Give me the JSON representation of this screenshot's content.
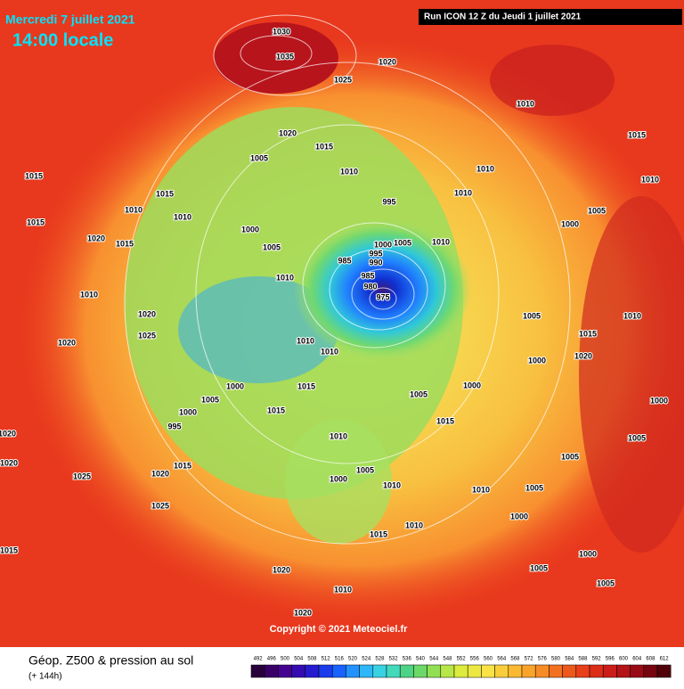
{
  "header": {
    "date": "Mercredi 7 juillet 2021",
    "time": "14:00 locale",
    "run": "Run ICON 12 Z du Jeudi 1 juillet 2021"
  },
  "copyright": "Copyright © 2021 Meteociel.fr",
  "footer": {
    "title": "Géop. Z500 & pression au sol",
    "lead": "(+ 144h)"
  },
  "scale": [
    "492",
    "496",
    "500",
    "504",
    "508",
    "512",
    "516",
    "520",
    "524",
    "528",
    "532",
    "536",
    "540",
    "544",
    "548",
    "552",
    "556",
    "560",
    "564",
    "568",
    "572",
    "576",
    "580",
    "584",
    "588",
    "592",
    "596",
    "600",
    "604",
    "608",
    "612"
  ],
  "pressure_labels": [
    "1030",
    "1035",
    "1020",
    "1025",
    "1020",
    "1015",
    "1005",
    "1010",
    "995",
    "1005",
    "1010",
    "1000",
    "995",
    "990",
    "985",
    "985",
    "980",
    "975",
    "1000",
    "1005",
    "1010",
    "1010",
    "1010",
    "1015",
    "1015",
    "1000",
    "1005",
    "1000",
    "995",
    "1010",
    "1005",
    "1000",
    "1015",
    "1005",
    "1000",
    "1010",
    "1010",
    "1015",
    "1015",
    "1010",
    "1010",
    "1020",
    "1015",
    "1010",
    "1020",
    "1025",
    "1020",
    "1020",
    "1020",
    "1025",
    "1020",
    "1025",
    "1015",
    "1015",
    "1020",
    "1020",
    "1010",
    "1015",
    "1010",
    "1010",
    "1015",
    "1010",
    "1005",
    "1000",
    "1005",
    "1000",
    "1000",
    "1005",
    "1005",
    "1005",
    "1000",
    "1005",
    "1000",
    "1005",
    "1010",
    "1015",
    "1020",
    "1010",
    "1010",
    "1015"
  ]
}
